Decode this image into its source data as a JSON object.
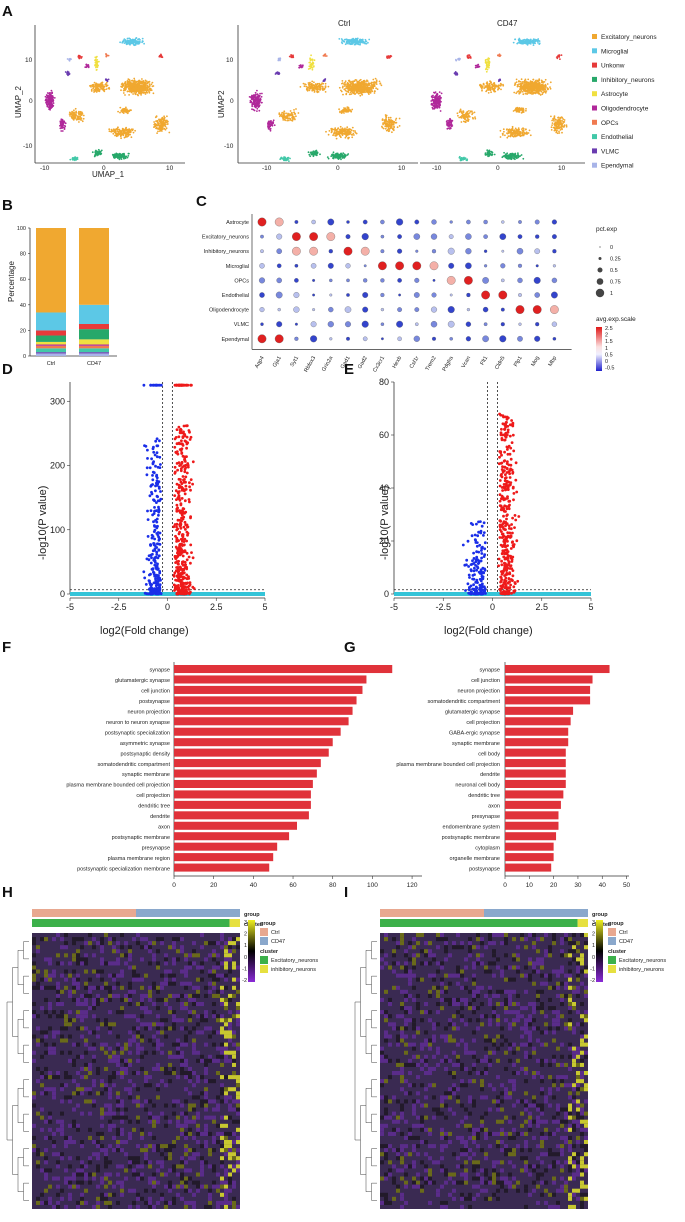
{
  "panels": {
    "A": "A",
    "B": "B",
    "C": "C",
    "D": "D",
    "E": "E",
    "F": "F",
    "G": "G",
    "H": "H",
    "I": "I"
  },
  "umap": {
    "xlabel": "UMAP_1",
    "ylabel": "UMAP_2",
    "ylabel2": "UMAP2",
    "ctrl_title": "Ctrl",
    "cd47_title": "CD47",
    "xticks": [
      "-10",
      "0",
      "10"
    ],
    "yticks": [
      "10",
      "0",
      "-10"
    ],
    "legend": [
      {
        "name": "Excitatory_neurons",
        "color": "#f0a830"
      },
      {
        "name": "Microglial",
        "color": "#5cc8e6"
      },
      {
        "name": "Unkonw",
        "color": "#e63a3a"
      },
      {
        "name": "Inhibitory_neurons",
        "color": "#27a86a"
      },
      {
        "name": "Astrocyte",
        "color": "#f0e040"
      },
      {
        "name": "Oligodendrocyte",
        "color": "#b0289a"
      },
      {
        "name": "OPCs",
        "color": "#f07a50"
      },
      {
        "name": "Endothelial",
        "color": "#42c8a8"
      },
      {
        "name": "VLMC",
        "color": "#6a3cb0"
      },
      {
        "name": "Ependymal",
        "color": "#a8b4e8"
      }
    ]
  },
  "chart_data": [
    {
      "type": "bar",
      "id": "B",
      "stacked": true,
      "ylabel": "Percentage",
      "ylim": [
        0,
        100
      ],
      "yticks": [
        "0",
        "20",
        "40",
        "60",
        "80",
        "100"
      ],
      "categories": [
        "Ctrl",
        "CD47"
      ],
      "series": [
        {
          "name": "Ependymal",
          "color": "#a8b4e8",
          "values": [
            2,
            2
          ]
        },
        {
          "name": "VLMC",
          "color": "#6a3cb0",
          "values": [
            1,
            1
          ]
        },
        {
          "name": "Endothelial",
          "color": "#42c8a8",
          "values": [
            3,
            3
          ]
        },
        {
          "name": "OPCs",
          "color": "#f07a50",
          "values": [
            2,
            2
          ]
        },
        {
          "name": "Oligodendrocyte",
          "color": "#b0289a",
          "values": [
            1,
            1
          ]
        },
        {
          "name": "Astrocyte",
          "color": "#f0e040",
          "values": [
            2,
            4
          ]
        },
        {
          "name": "Inhibitory_neurons",
          "color": "#27a86a",
          "values": [
            5,
            8
          ]
        },
        {
          "name": "Unkonw",
          "color": "#e63a3a",
          "values": [
            4,
            4
          ]
        },
        {
          "name": "Microglial",
          "color": "#5cc8e6",
          "values": [
            14,
            15
          ]
        },
        {
          "name": "Excitatory_neurons",
          "color": "#f0a830",
          "values": [
            66,
            60
          ]
        }
      ]
    },
    {
      "type": "dotplot",
      "id": "C",
      "rows": [
        "Astrocyte",
        "Excitatory_neurons",
        "Inhibitory_neurons",
        "Microglial",
        "OPCs",
        "Endothelial",
        "Oligodendrocyte",
        "VLMC",
        "Ependymal"
      ],
      "cols": [
        "Aqp4",
        "Gja1",
        "Syt1",
        "Rbfox3",
        "Grin2a",
        "Gad1",
        "Gad2",
        "Cx3cr1",
        "Hexb",
        "Csf1r",
        "Trem2",
        "Pdgfra",
        "Vcan",
        "Flt1",
        "Cldn5",
        "Plp1",
        "Mog",
        "Mbp"
      ],
      "size_legend_title": "pct.exp",
      "size_legend": [
        "0",
        "0.25",
        "0.5",
        "0.75",
        "1"
      ],
      "color_legend_title": "avg.exp.scale",
      "color_legend": [
        "2.5",
        "2",
        "1.5",
        "1",
        "0.5",
        "0",
        "-0.5"
      ],
      "highlights": [
        [
          0,
          0
        ],
        [
          0,
          1
        ],
        [
          1,
          2
        ],
        [
          1,
          3
        ],
        [
          1,
          4
        ],
        [
          2,
          2
        ],
        [
          2,
          3
        ],
        [
          2,
          5
        ],
        [
          2,
          6
        ],
        [
          3,
          7
        ],
        [
          3,
          8
        ],
        [
          3,
          9
        ],
        [
          3,
          10
        ],
        [
          4,
          11
        ],
        [
          4,
          12
        ],
        [
          5,
          13
        ],
        [
          5,
          14
        ],
        [
          6,
          15
        ],
        [
          6,
          16
        ],
        [
          6,
          17
        ],
        [
          8,
          0
        ],
        [
          8,
          1
        ]
      ]
    },
    {
      "type": "scatter",
      "id": "D",
      "xlabel": "log2(Fold change)",
      "ylabel": "-log10(P value)",
      "xlim": [
        -5,
        5
      ],
      "ylim": [
        0,
        330
      ],
      "xticks": [
        "-5",
        "-2.5",
        "0",
        "2.5",
        "5"
      ],
      "yticks": [
        "0",
        "100",
        "200",
        "300"
      ]
    },
    {
      "type": "scatter",
      "id": "E",
      "xlabel": "log2(Fold change)",
      "ylabel": "-log10(P value)",
      "xlim": [
        -5,
        5
      ],
      "ylim": [
        0,
        80
      ],
      "xticks": [
        "-5",
        "-2.5",
        "0",
        "2.5",
        "5"
      ],
      "yticks": [
        "0",
        "20",
        "40",
        "60",
        "80"
      ]
    },
    {
      "type": "bar",
      "id": "F",
      "orientation": "horizontal",
      "xlim": [
        0,
        125
      ],
      "xticks": [
        "0",
        "20",
        "40",
        "60",
        "80",
        "100",
        "120"
      ],
      "categories": [
        "synapse",
        "glutamatergic synapse",
        "cell junction",
        "postsynapse",
        "neuron projection",
        "neuron to neuron synapse",
        "postsynaptic specialization",
        "asymmetric synapse",
        "postsynaptic density",
        "somatodendritic compartment",
        "synaptic membrane",
        "plasma membrane bounded cell projection",
        "cell projection",
        "dendritic tree",
        "dendrite",
        "axon",
        "postsynaptic membrane",
        "presynapse",
        "plasma membrane region",
        "postsynaptic specialization membrane"
      ],
      "values": [
        110,
        97,
        95,
        92,
        90,
        88,
        84,
        80,
        78,
        74,
        72,
        70,
        69,
        69,
        68,
        62,
        58,
        52,
        50,
        48
      ]
    },
    {
      "type": "bar",
      "id": "G",
      "orientation": "horizontal",
      "xlim": [
        0,
        51
      ],
      "xticks": [
        "0",
        "10",
        "20",
        "30",
        "40",
        "50"
      ],
      "categories": [
        "synapse",
        "cell junction",
        "neuron projection",
        "somatodendritic compartment",
        "glutamatergic synapse",
        "cell projection",
        "GABA-ergic synapse",
        "synaptic membrane",
        "cell body",
        "plasma membrane bounded cell projection",
        "dendrite",
        "neuronal cell body",
        "dendritic tree",
        "axon",
        "presynapse",
        "endomembrane system",
        "postsynaptic membrane",
        "cytoplasm",
        "organelle membrane",
        "postsynapse"
      ],
      "values": [
        43,
        36,
        35,
        35,
        28,
        27,
        26,
        26,
        25,
        25,
        25,
        25,
        24,
        23,
        22,
        22,
        21,
        20,
        20,
        19
      ]
    },
    {
      "type": "heatmap",
      "id": "H",
      "legend_ticks": [
        "3",
        "2",
        "1",
        "0",
        "-1",
        "-2"
      ],
      "group_title": "group",
      "group_items": [
        {
          "name": "Ctrl",
          "color": "#e8a890"
        },
        {
          "name": "CD47",
          "color": "#8aa8cc"
        }
      ],
      "cluster_title": "cluster",
      "cluster_items": [
        {
          "name": "Excitatory_neurons",
          "color": "#3cb04a"
        },
        {
          "name": "inhibitory_neurons",
          "color": "#e6e040"
        }
      ],
      "bar_labels": [
        "group",
        "cluster"
      ]
    },
    {
      "type": "heatmap",
      "id": "I",
      "legend_ticks": [
        "3",
        "2",
        "1",
        "0",
        "-1",
        "-2"
      ],
      "group_title": "group",
      "group_items": [
        {
          "name": "Ctrl",
          "color": "#e8a890"
        },
        {
          "name": "CD47",
          "color": "#8aa8cc"
        }
      ],
      "cluster_title": "cluster",
      "cluster_items": [
        {
          "name": "Excitatory_neurons",
          "color": "#3cb04a"
        },
        {
          "name": "inhibitory_neurons",
          "color": "#e6e040"
        }
      ],
      "bar_labels": [
        "group",
        "cluster"
      ]
    }
  ]
}
